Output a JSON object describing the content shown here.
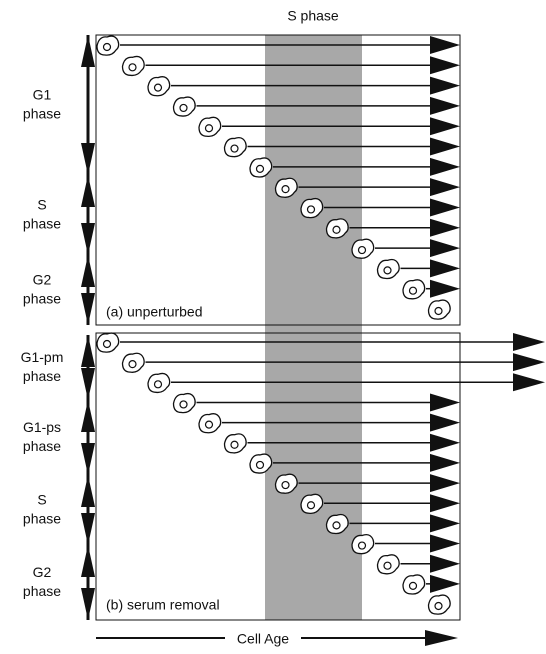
{
  "header": {
    "title": "S phase"
  },
  "panels": [
    {
      "caption": "(a) unperturbed",
      "phases": [
        {
          "lines": [
            "G1",
            "phase"
          ]
        },
        {
          "lines": [
            "S",
            "phase"
          ]
        },
        {
          "lines": [
            "G2",
            "phase"
          ]
        }
      ]
    },
    {
      "caption": "(b) serum removal",
      "phases": [
        {
          "lines": [
            "G1-pm",
            "phase"
          ]
        },
        {
          "lines": [
            "G1-ps",
            "phase"
          ]
        },
        {
          "lines": [
            "S",
            "phase"
          ]
        },
        {
          "lines": [
            "G2",
            "phase"
          ]
        }
      ]
    }
  ],
  "footer": {
    "axis_label": "Cell Age"
  }
}
